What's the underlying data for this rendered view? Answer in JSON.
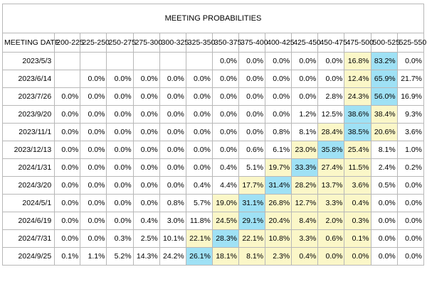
{
  "table": {
    "title": "MEETING PROBABILITIES",
    "date_header": "MEETING DATE",
    "columns": [
      "200-225",
      "225-250",
      "250-275",
      "275-300",
      "300-325",
      "325-350",
      "350-375",
      "375-400",
      "400-425",
      "425-450",
      "450-475",
      "475-500",
      "500-525",
      "525-550"
    ],
    "rows": [
      {
        "date": "2023/5/3",
        "cells": [
          "",
          "",
          "",
          "",
          "",
          "",
          "0.0%",
          "0.0%",
          "0.0%",
          "0.0%",
          "0.0%",
          "16.8%",
          "83.2%",
          "0.0%"
        ]
      },
      {
        "date": "2023/6/14",
        "cells": [
          "",
          "0.0%",
          "0.0%",
          "0.0%",
          "0.0%",
          "0.0%",
          "0.0%",
          "0.0%",
          "0.0%",
          "0.0%",
          "0.0%",
          "12.4%",
          "65.9%",
          "21.7%"
        ]
      },
      {
        "date": "2023/7/26",
        "cells": [
          "0.0%",
          "0.0%",
          "0.0%",
          "0.0%",
          "0.0%",
          "0.0%",
          "0.0%",
          "0.0%",
          "0.0%",
          "0.0%",
          "2.8%",
          "24.3%",
          "56.0%",
          "16.9%"
        ]
      },
      {
        "date": "2023/9/20",
        "cells": [
          "0.0%",
          "0.0%",
          "0.0%",
          "0.0%",
          "0.0%",
          "0.0%",
          "0.0%",
          "0.0%",
          "0.0%",
          "1.2%",
          "12.5%",
          "38.6%",
          "38.4%",
          "9.3%"
        ]
      },
      {
        "date": "2023/11/1",
        "cells": [
          "0.0%",
          "0.0%",
          "0.0%",
          "0.0%",
          "0.0%",
          "0.0%",
          "0.0%",
          "0.0%",
          "0.8%",
          "8.1%",
          "28.4%",
          "38.5%",
          "20.6%",
          "3.6%"
        ]
      },
      {
        "date": "2023/12/13",
        "cells": [
          "0.0%",
          "0.0%",
          "0.0%",
          "0.0%",
          "0.0%",
          "0.0%",
          "0.0%",
          "0.6%",
          "6.1%",
          "23.0%",
          "35.8%",
          "25.4%",
          "8.1%",
          "1.0%"
        ]
      },
      {
        "date": "2024/1/31",
        "cells": [
          "0.0%",
          "0.0%",
          "0.0%",
          "0.0%",
          "0.0%",
          "0.0%",
          "0.4%",
          "5.1%",
          "19.7%",
          "33.3%",
          "27.4%",
          "11.5%",
          "2.4%",
          "0.2%"
        ]
      },
      {
        "date": "2024/3/20",
        "cells": [
          "0.0%",
          "0.0%",
          "0.0%",
          "0.0%",
          "0.0%",
          "0.4%",
          "4.4%",
          "17.7%",
          "31.4%",
          "28.2%",
          "13.7%",
          "3.6%",
          "0.5%",
          "0.0%"
        ]
      },
      {
        "date": "2024/5/1",
        "cells": [
          "0.0%",
          "0.0%",
          "0.0%",
          "0.0%",
          "0.8%",
          "5.7%",
          "19.0%",
          "31.1%",
          "26.8%",
          "12.7%",
          "3.3%",
          "0.4%",
          "0.0%",
          "0.0%"
        ]
      },
      {
        "date": "2024/6/19",
        "cells": [
          "0.0%",
          "0.0%",
          "0.0%",
          "0.4%",
          "3.0%",
          "11.8%",
          "24.5%",
          "29.1%",
          "20.4%",
          "8.4%",
          "2.0%",
          "0.3%",
          "0.0%",
          "0.0%"
        ]
      },
      {
        "date": "2024/7/31",
        "cells": [
          "0.0%",
          "0.0%",
          "0.3%",
          "2.5%",
          "10.1%",
          "22.1%",
          "28.3%",
          "22.1%",
          "10.8%",
          "3.3%",
          "0.6%",
          "0.1%",
          "0.0%",
          "0.0%"
        ]
      },
      {
        "date": "2024/9/25",
        "cells": [
          "0.1%",
          "1.1%",
          "5.2%",
          "14.3%",
          "24.2%",
          "26.1%",
          "18.1%",
          "8.1%",
          "2.3%",
          "0.4%",
          "0.0%",
          "0.0%",
          "0.0%",
          "0.0%"
        ]
      }
    ],
    "highlights": [
      {
        "row": 0,
        "col": 11,
        "color": "yellow"
      },
      {
        "row": 0,
        "col": 12,
        "color": "blue"
      },
      {
        "row": 1,
        "col": 11,
        "color": "yellow"
      },
      {
        "row": 1,
        "col": 12,
        "color": "blue"
      },
      {
        "row": 2,
        "col": 11,
        "color": "yellow"
      },
      {
        "row": 2,
        "col": 12,
        "color": "blue"
      },
      {
        "row": 3,
        "col": 11,
        "color": "blue"
      },
      {
        "row": 3,
        "col": 12,
        "color": "yellow"
      },
      {
        "row": 4,
        "col": 10,
        "color": "yellow"
      },
      {
        "row": 4,
        "col": 11,
        "color": "blue"
      },
      {
        "row": 4,
        "col": 12,
        "color": "yellow"
      },
      {
        "row": 5,
        "col": 9,
        "color": "yellow"
      },
      {
        "row": 5,
        "col": 10,
        "color": "blue"
      },
      {
        "row": 5,
        "col": 11,
        "color": "yellow"
      },
      {
        "row": 6,
        "col": 8,
        "color": "yellow"
      },
      {
        "row": 6,
        "col": 9,
        "color": "blue"
      },
      {
        "row": 6,
        "col": 10,
        "color": "yellow"
      },
      {
        "row": 6,
        "col": 11,
        "color": "yellow"
      },
      {
        "row": 7,
        "col": 7,
        "color": "yellow"
      },
      {
        "row": 7,
        "col": 8,
        "color": "blue"
      },
      {
        "row": 7,
        "col": 9,
        "color": "yellow"
      },
      {
        "row": 7,
        "col": 10,
        "color": "yellow"
      },
      {
        "row": 7,
        "col": 11,
        "color": "yellow"
      },
      {
        "row": 8,
        "col": 6,
        "color": "yellow"
      },
      {
        "row": 8,
        "col": 7,
        "color": "blue"
      },
      {
        "row": 8,
        "col": 8,
        "color": "yellow"
      },
      {
        "row": 8,
        "col": 9,
        "color": "yellow"
      },
      {
        "row": 8,
        "col": 10,
        "color": "yellow"
      },
      {
        "row": 8,
        "col": 11,
        "color": "yellow"
      },
      {
        "row": 9,
        "col": 6,
        "color": "yellow"
      },
      {
        "row": 9,
        "col": 7,
        "color": "blue"
      },
      {
        "row": 9,
        "col": 8,
        "color": "yellow"
      },
      {
        "row": 9,
        "col": 9,
        "color": "yellow"
      },
      {
        "row": 9,
        "col": 10,
        "color": "yellow"
      },
      {
        "row": 9,
        "col": 11,
        "color": "yellow"
      },
      {
        "row": 10,
        "col": 5,
        "color": "yellow"
      },
      {
        "row": 10,
        "col": 6,
        "color": "blue"
      },
      {
        "row": 10,
        "col": 7,
        "color": "yellow"
      },
      {
        "row": 10,
        "col": 8,
        "color": "yellow"
      },
      {
        "row": 10,
        "col": 9,
        "color": "yellow"
      },
      {
        "row": 10,
        "col": 10,
        "color": "yellow"
      },
      {
        "row": 10,
        "col": 11,
        "color": "yellow"
      },
      {
        "row": 11,
        "col": 5,
        "color": "blue"
      },
      {
        "row": 11,
        "col": 6,
        "color": "yellow"
      },
      {
        "row": 11,
        "col": 7,
        "color": "yellow"
      },
      {
        "row": 11,
        "col": 8,
        "color": "yellow"
      },
      {
        "row": 11,
        "col": 9,
        "color": "yellow"
      },
      {
        "row": 11,
        "col": 10,
        "color": "yellow"
      },
      {
        "row": 11,
        "col": 11,
        "color": "yellow"
      }
    ],
    "colors": {
      "yellow": "#fbf7c8",
      "blue": "#9fe1f5"
    }
  }
}
